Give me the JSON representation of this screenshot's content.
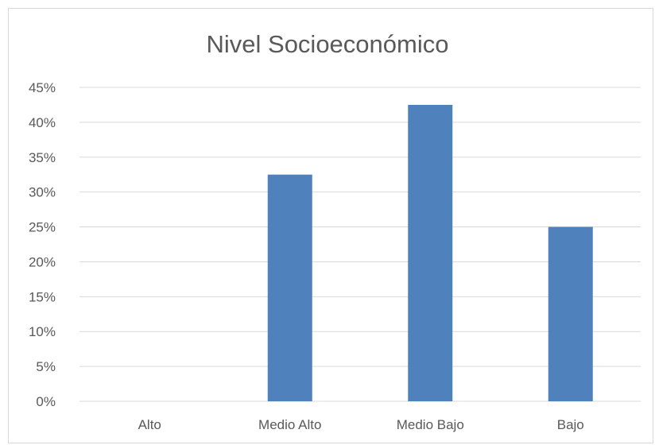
{
  "chart_data": {
    "type": "bar",
    "title": "Nivel Socioeconómico",
    "categories": [
      "Alto",
      "Medio Alto",
      "Medio Bajo",
      "Bajo"
    ],
    "values": [
      0,
      32.5,
      42.5,
      25
    ],
    "ylim": [
      0,
      45
    ],
    "yticks": [
      "0%",
      "5%",
      "10%",
      "15%",
      "20%",
      "25%",
      "30%",
      "35%",
      "40%",
      "45%"
    ],
    "ytick_values": [
      0,
      5,
      10,
      15,
      20,
      25,
      30,
      35,
      40,
      45
    ],
    "grid": true,
    "legend": "none",
    "bar_color": "#4f81bd",
    "grid_color": "#d9d9d9"
  }
}
